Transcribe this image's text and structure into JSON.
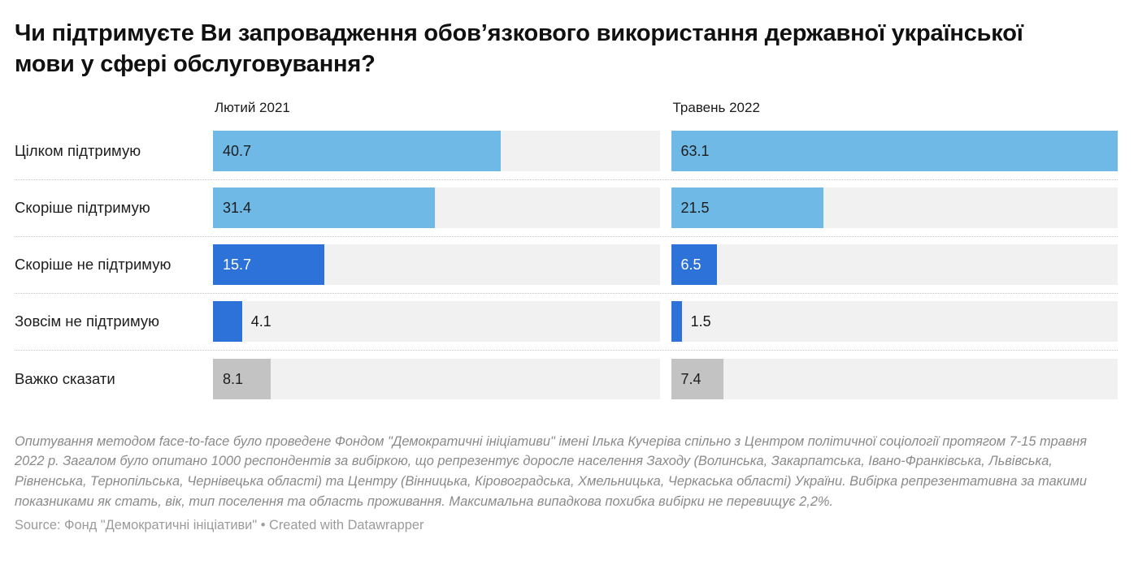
{
  "chart_data": {
    "type": "bar",
    "title": "Чи підтримуєте Ви запровадження обов’язкового використання державної української мови у сфері обслуговування?",
    "column_headers": [
      "Лютий 2021",
      "Травень 2022"
    ],
    "categories": [
      "Цілком підтримую",
      "Скоріше підтримую",
      "Скоріше не підтримую",
      "Зовсім не підтримую",
      "Важко сказати"
    ],
    "series": [
      {
        "name": "Лютий 2021",
        "values": [
          40.7,
          31.4,
          15.7,
          4.1,
          8.1
        ]
      },
      {
        "name": "Травень 2022",
        "values": [
          63.1,
          21.5,
          6.5,
          1.5,
          7.4
        ]
      }
    ],
    "xlim": [
      0,
      63.1
    ],
    "row_colors": [
      "light_blue",
      "light_blue",
      "blue",
      "blue",
      "gray"
    ],
    "grid": false,
    "legend_position": "none"
  },
  "theme": {
    "light_blue": "#6eb9e6",
    "blue": "#2d72d9",
    "gray": "#c3c3c3",
    "track": "#f1f1f1",
    "label_on_light": "#1d1d1d",
    "label_on_blue": "#ffffff",
    "label_outside": "#161616"
  },
  "footer": {
    "notes": "Опитування методом face-to-face було проведене Фондом \"Демократичні ініціативи\" імені Ілька Кучеріва спільно з Центром політичної соціології протягом 7-15 травня 2022 р. Загалом було опитано 1000 респондентів за вибіркою, що репрезентує доросле населення Заходу (Волинська, Закарпатська, Івано-Франківська, Львівська, Рівненська, Тернопільська, Чернівецька області) та Центру (Вінницька, Кіровоградська, Хмельницька, Черкаська області) України. Вибірка репрезентативна за такими показниками як стать, вік, тип поселення та область проживання. Максимальна випадкова похибка вибірки не перевищує 2,2%.",
    "source": "Source: Фонд \"Демократичні ініціативи\" • Created with Datawrapper"
  }
}
